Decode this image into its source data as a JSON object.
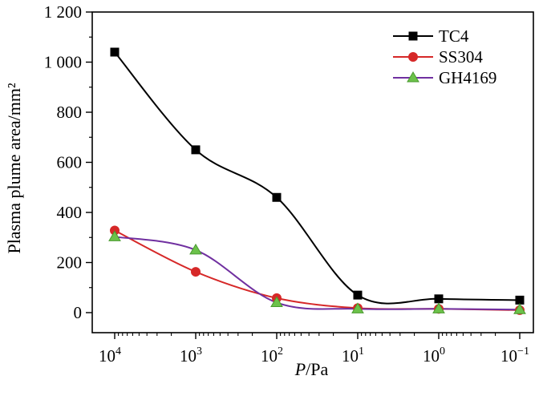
{
  "chart_data": {
    "type": "line",
    "xlabel_var": "P",
    "xlabel_unit": "/Pa",
    "ylabel": "Plasma plume area/mm²",
    "x_scale": "log",
    "x_reversed": true,
    "x": [
      10000,
      1000,
      100,
      10,
      1,
      0.1
    ],
    "x_tick_labels": [
      {
        "base": "10",
        "exp": "4"
      },
      {
        "base": "10",
        "exp": "3"
      },
      {
        "base": "10",
        "exp": "2"
      },
      {
        "base": "10",
        "exp": "1"
      },
      {
        "base": "10",
        "exp": "0"
      },
      {
        "base": "10",
        "exp": "−1"
      }
    ],
    "ylim": [
      -80,
      1200
    ],
    "y_ticks": [
      0,
      200,
      400,
      600,
      800,
      1000,
      1200
    ],
    "y_tick_labels": [
      "0",
      "200",
      "400",
      "600",
      "800",
      "1 000",
      "1 200"
    ],
    "grid": false,
    "legend_position": "top-right",
    "series": [
      {
        "name": "TC4",
        "color": "#000000",
        "marker": "square",
        "values": [
          1040,
          650,
          460,
          70,
          55,
          50
        ]
      },
      {
        "name": "SS304",
        "color": "#d62828",
        "marker": "circle",
        "values": [
          328,
          163,
          58,
          18,
          15,
          10
        ]
      },
      {
        "name": "GH4169",
        "color": "#7030a0",
        "marker": "triangle",
        "marker_color": "#6cc24a",
        "values": [
          303,
          250,
          40,
          15,
          15,
          12
        ]
      }
    ]
  }
}
